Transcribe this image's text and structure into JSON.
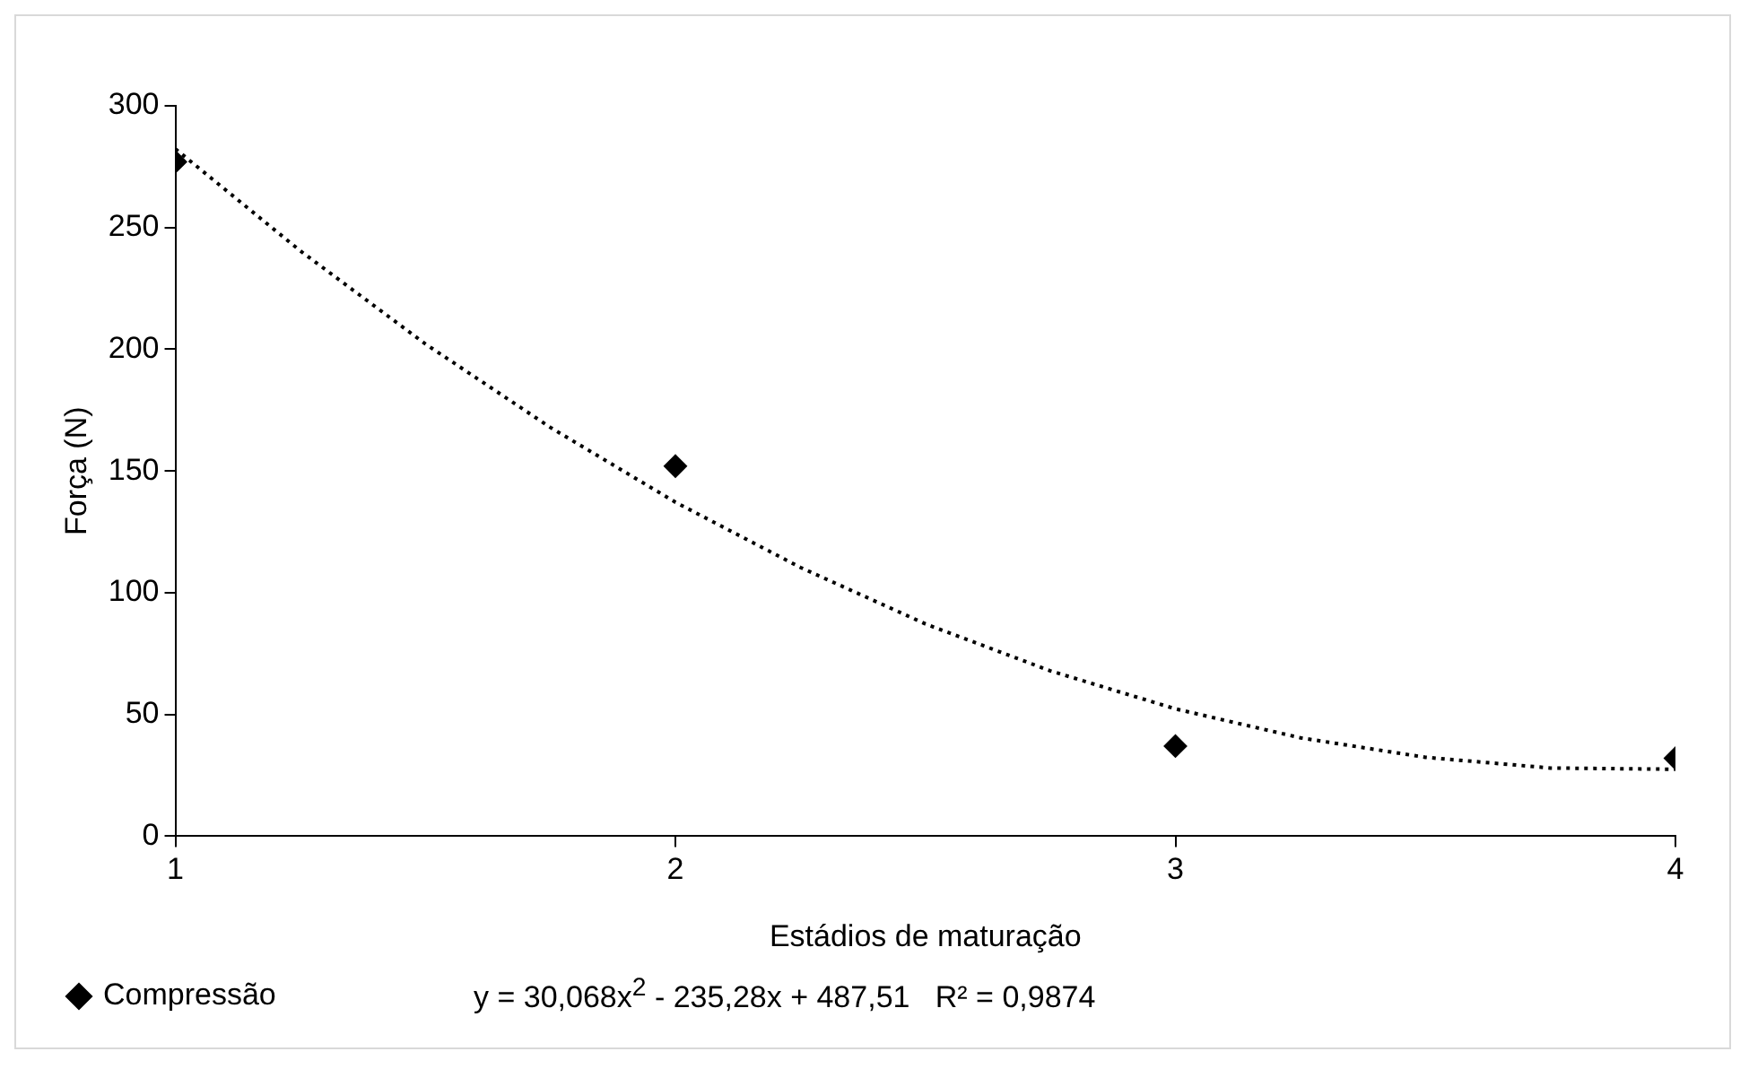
{
  "chart_data": {
    "type": "scatter",
    "xlabel": "Estádios de maturação",
    "ylabel": "Força (N)",
    "x": [
      1,
      2,
      3,
      4
    ],
    "series": [
      {
        "name": "Compressão",
        "color": "#000000",
        "values": [
          277,
          152,
          37,
          32
        ],
        "marker": "diamond"
      },
      {
        "type": "line",
        "color": "#000000",
        "line_style": "dotted",
        "marker": "none",
        "x": [
          1,
          1.25,
          1.5,
          1.75,
          2,
          2.25,
          2.5,
          2.75,
          3,
          3.25,
          3.5,
          3.75,
          4
        ],
        "values": [
          282.3,
          240.4,
          202.2,
          167.9,
          137.2,
          110.4,
          87.2,
          67.9,
          52.3,
          40.4,
          32.4,
          28,
          27.5
        ]
      }
    ],
    "xlim": [
      1,
      4
    ],
    "xticks": [
      1,
      2,
      3,
      4
    ],
    "ylim": [
      0,
      300
    ],
    "yticks": [
      0,
      50,
      100,
      150,
      200,
      250,
      300
    ],
    "grid": false,
    "legend": "bottom",
    "annotations": [
      "y = 30,068x$^{2}$ - 235,28x + 487,51   R² = 0,9874"
    ]
  }
}
